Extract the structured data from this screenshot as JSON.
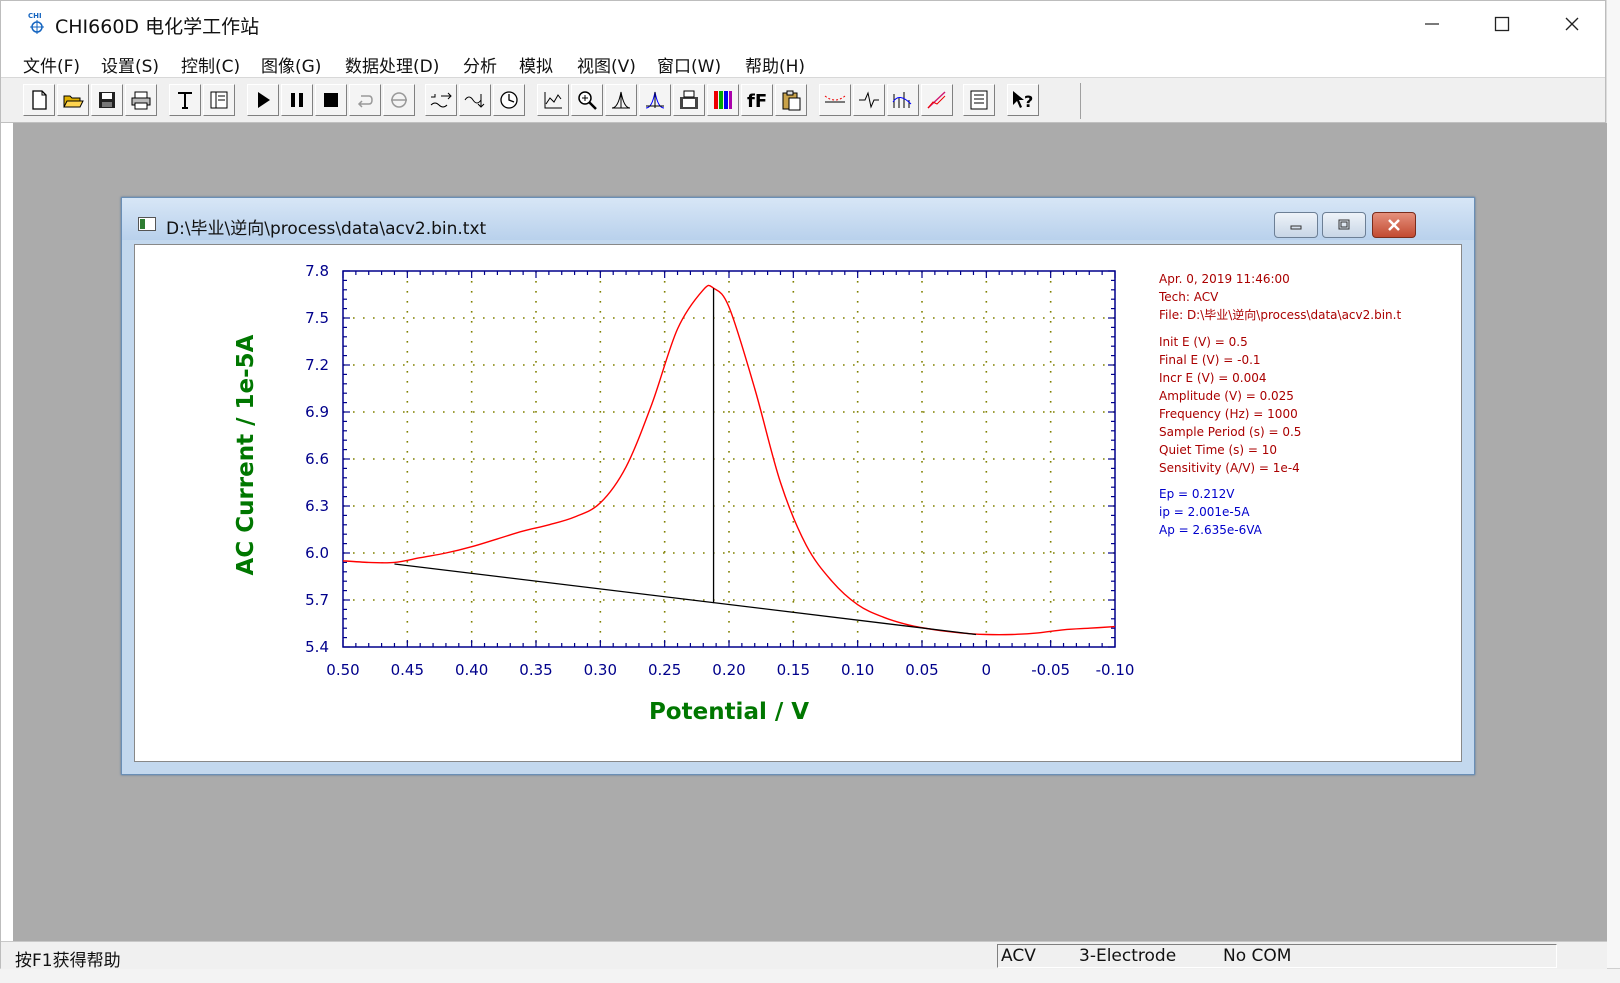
{
  "app": {
    "title": "CHI660D 电化学工作站",
    "icon_text": "CHI"
  },
  "menu": [
    {
      "label": "文件(F)",
      "name": "file"
    },
    {
      "label": "设置(S)",
      "name": "settings"
    },
    {
      "label": "控制(C)",
      "name": "control"
    },
    {
      "label": "图像(G)",
      "name": "graphics"
    },
    {
      "label": "数据处理(D)",
      "name": "data-processing"
    },
    {
      "label": "分析",
      "name": "analysis"
    },
    {
      "label": "模拟",
      "name": "simulation"
    },
    {
      "label": "视图(V)",
      "name": "view"
    },
    {
      "label": "窗口(W)",
      "name": "window"
    },
    {
      "label": "帮助(H)",
      "name": "help"
    }
  ],
  "toolbar": {
    "buttons": [
      "new-icon",
      "open-icon",
      "save-icon",
      "print-icon",
      "text-icon",
      "layout-icon",
      "run-icon",
      "pause-icon",
      "stop-icon",
      "reverse-icon",
      "filter-icon",
      "smooth-icon",
      "integrate-icon",
      "macro-icon",
      "graph-icon",
      "zoom-icon",
      "peak-icon",
      "peak-def-icon",
      "image-icon",
      "color-icon",
      "font-icon",
      "clipboard-icon",
      "baseline-icon",
      "wave-icon",
      "spectrum-icon",
      "plot-icon",
      "table-icon",
      "help-icon"
    ]
  },
  "child_window": {
    "title": "D:\\毕业\\逆向\\process\\data\\acv2.bin.txt"
  },
  "chart_data": {
    "type": "line",
    "xlabel": "Potential / V",
    "ylabel": "AC Current / 1e-5A",
    "xlim": [
      0.5,
      -0.1
    ],
    "ylim": [
      5.4,
      7.8
    ],
    "x_ticks": [
      "0.50",
      "0.45",
      "0.40",
      "0.35",
      "0.30",
      "0.25",
      "0.20",
      "0.15",
      "0.10",
      "0.05",
      "0",
      "-0.05",
      "-0.10"
    ],
    "y_ticks": [
      "7.8",
      "7.5",
      "7.2",
      "6.9",
      "6.6",
      "6.3",
      "6.0",
      "5.7",
      "5.4"
    ],
    "series": [
      {
        "name": "ACV",
        "color": "#ff0000",
        "x": [
          0.5,
          0.48,
          0.46,
          0.44,
          0.42,
          0.4,
          0.38,
          0.36,
          0.34,
          0.32,
          0.3,
          0.28,
          0.26,
          0.24,
          0.22,
          0.212,
          0.2,
          0.18,
          0.16,
          0.14,
          0.12,
          0.1,
          0.08,
          0.06,
          0.04,
          0.02,
          0.0,
          -0.02,
          -0.04,
          -0.06,
          -0.08,
          -0.1
        ],
        "y": [
          5.95,
          5.94,
          5.94,
          5.97,
          6.0,
          6.04,
          6.09,
          6.14,
          6.18,
          6.23,
          6.32,
          6.55,
          6.95,
          7.43,
          7.68,
          7.69,
          7.57,
          7.05,
          6.45,
          6.05,
          5.82,
          5.67,
          5.59,
          5.54,
          5.51,
          5.49,
          5.48,
          5.48,
          5.49,
          5.51,
          5.52,
          5.53
        ]
      }
    ],
    "baseline": {
      "x": [
        0.46,
        0.008
      ],
      "y": [
        5.93,
        5.48
      ],
      "color": "#000000"
    },
    "peak_line": {
      "x": 0.212,
      "y_top": 7.69,
      "y_base": 5.68
    },
    "grid": true
  },
  "info": {
    "date": "Apr. 0, 2019    11:46:00",
    "tech": "Tech: ACV",
    "file": "File: D:\\毕业\\逆向\\process\\data\\acv2.bin.t",
    "params": [
      "Init E (V) = 0.5",
      "Final E (V) = -0.1",
      "Incr E (V) = 0.004",
      "Amplitude (V) = 0.025",
      "Frequency (Hz) = 1000",
      "Sample Period (s) = 0.5",
      "Quiet Time (s) = 10",
      "Sensitivity (A/V) = 1e-4"
    ],
    "results": [
      "Ep = 0.212V",
      "ip = 2.001e-5A",
      "Ap = 2.635e-6VA"
    ]
  },
  "status": {
    "help": "按F1获得帮助",
    "tech": "ACV",
    "electrode": "3-Electrode",
    "com": "No COM"
  },
  "colors": {
    "axis": "#00008b",
    "label": "#007700",
    "grid": "#808000",
    "info_params": "#aa0000",
    "info_results": "#0000cc"
  }
}
